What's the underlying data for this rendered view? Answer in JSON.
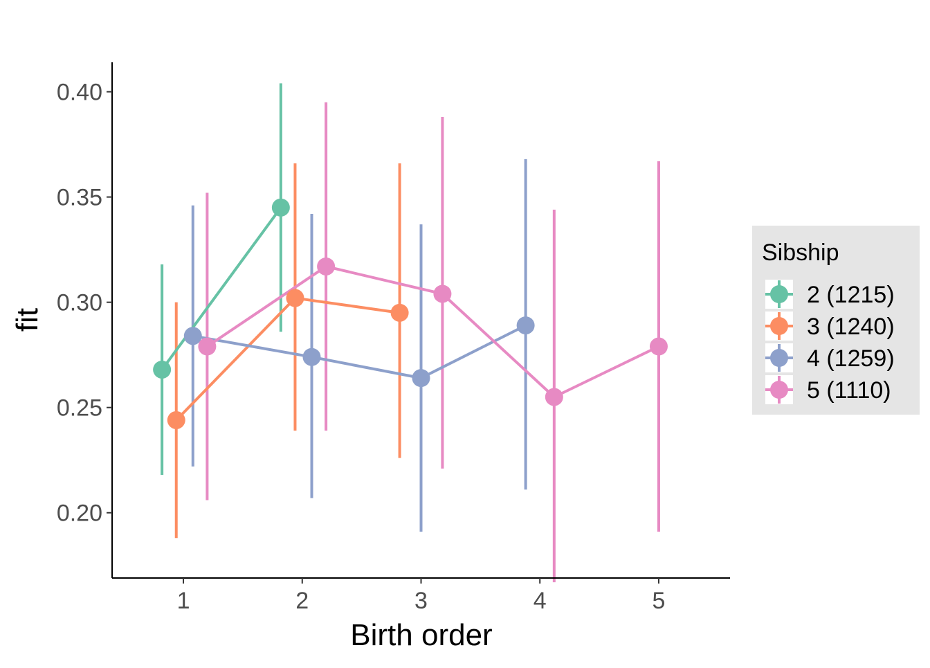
{
  "chart_data": {
    "type": "scatter",
    "title": "",
    "xlabel": "Birth order",
    "ylabel": "fit",
    "xlim": [
      0.4,
      5.6
    ],
    "ylim": [
      0.169,
      0.414
    ],
    "x_ticks": [
      1,
      2,
      3,
      4,
      5
    ],
    "y_ticks": [
      0.2,
      0.25,
      0.3,
      0.35,
      0.4
    ],
    "x_tick_labels": [
      "1",
      "2",
      "3",
      "4",
      "5"
    ],
    "y_tick_labels": [
      "0.20",
      "0.25",
      "0.30",
      "0.35",
      "0.40"
    ],
    "grid": false,
    "error_bars": true,
    "connected_points": true,
    "dodge": true,
    "legend": {
      "title": "Sibship",
      "position": "right",
      "background": "#e5e5e5"
    },
    "series": [
      {
        "name": "2 (1215)",
        "color": "#66c2a5",
        "points": [
          {
            "x": 1,
            "x_dodged": 0.82,
            "y": 0.268,
            "lower": 0.218,
            "upper": 0.318
          },
          {
            "x": 2,
            "x_dodged": 1.82,
            "y": 0.345,
            "lower": 0.286,
            "upper": 0.404
          }
        ]
      },
      {
        "name": "3 (1240)",
        "color": "#fc8d62",
        "points": [
          {
            "x": 1,
            "x_dodged": 0.94,
            "y": 0.244,
            "lower": 0.188,
            "upper": 0.3
          },
          {
            "x": 2,
            "x_dodged": 1.94,
            "y": 0.302,
            "lower": 0.239,
            "upper": 0.366
          },
          {
            "x": 3,
            "x_dodged": 2.82,
            "y": 0.295,
            "lower": 0.226,
            "upper": 0.366
          }
        ]
      },
      {
        "name": "4 (1259)",
        "color": "#8da0cb",
        "points": [
          {
            "x": 1,
            "x_dodged": 1.08,
            "y": 0.284,
            "lower": 0.222,
            "upper": 0.346
          },
          {
            "x": 2,
            "x_dodged": 2.08,
            "y": 0.274,
            "lower": 0.207,
            "upper": 0.342
          },
          {
            "x": 3,
            "x_dodged": 3.0,
            "y": 0.264,
            "lower": 0.191,
            "upper": 0.337
          },
          {
            "x": 4,
            "x_dodged": 3.88,
            "y": 0.289,
            "lower": 0.211,
            "upper": 0.368
          }
        ]
      },
      {
        "name": "5 (1110)",
        "color": "#e78ac3",
        "points": [
          {
            "x": 1,
            "x_dodged": 1.2,
            "y": 0.279,
            "lower": 0.206,
            "upper": 0.352
          },
          {
            "x": 2,
            "x_dodged": 2.2,
            "y": 0.317,
            "lower": 0.239,
            "upper": 0.395
          },
          {
            "x": 3,
            "x_dodged": 3.18,
            "y": 0.304,
            "lower": 0.221,
            "upper": 0.388
          },
          {
            "x": 4,
            "x_dodged": 4.12,
            "y": 0.255,
            "lower": 0.167,
            "upper": 0.344
          },
          {
            "x": 5,
            "x_dodged": 5.0,
            "y": 0.279,
            "lower": 0.191,
            "upper": 0.367
          }
        ]
      }
    ]
  }
}
